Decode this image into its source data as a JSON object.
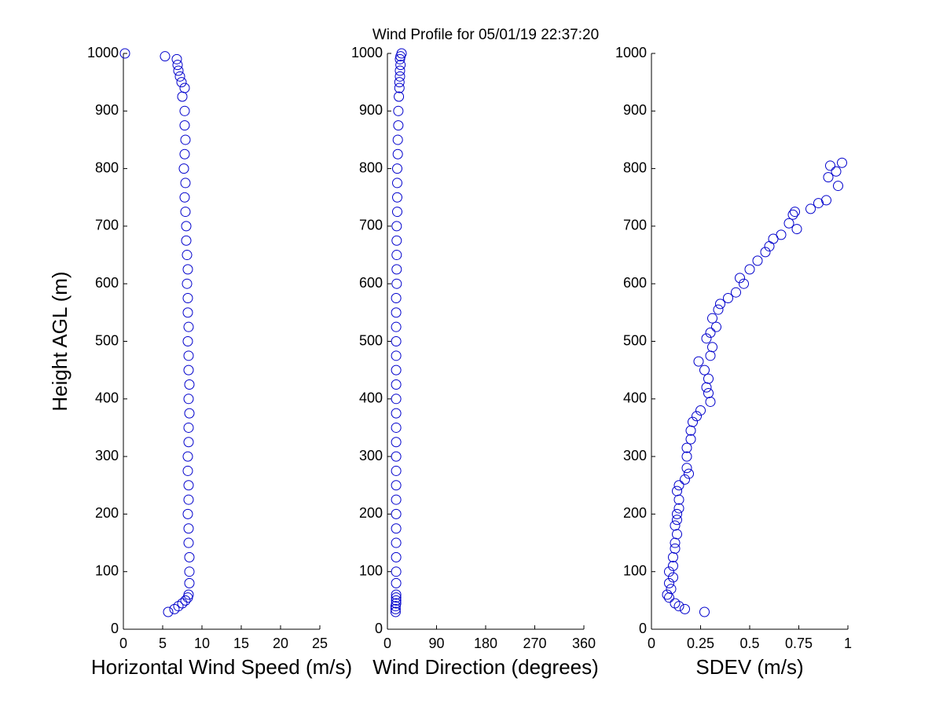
{
  "chart_data": [
    {
      "type": "scatter",
      "ylabel": "Height AGL (m)",
      "xlabel": "Horizontal Wind Speed (m/s)",
      "color": "#0000cc",
      "xlim": [
        0,
        25
      ],
      "xticks": [
        0,
        5,
        10,
        15,
        20,
        25
      ],
      "ylim": [
        0,
        1000
      ],
      "yticks": [
        0,
        100,
        200,
        300,
        400,
        500,
        600,
        700,
        800,
        900,
        1000
      ],
      "x": [
        5.7,
        6.5,
        7.0,
        7.5,
        7.9,
        8.2,
        8.3,
        8.4,
        8.4,
        8.4,
        8.3,
        8.3,
        8.2,
        8.3,
        8.3,
        8.2,
        8.2,
        8.3,
        8.3,
        8.4,
        8.3,
        8.4,
        8.3,
        8.3,
        8.2,
        8.3,
        8.2,
        8.2,
        8.1,
        8.2,
        8.1,
        8.0,
        8.0,
        7.9,
        7.8,
        7.9,
        7.7,
        7.8,
        7.9,
        7.8,
        7.8,
        7.5,
        7.8,
        7.4,
        7.2,
        7.0,
        6.9,
        6.8,
        5.3,
        0.2
      ],
      "y": [
        30,
        35,
        40,
        45,
        50,
        55,
        60,
        80,
        100,
        125,
        150,
        175,
        200,
        225,
        250,
        275,
        300,
        325,
        350,
        375,
        400,
        425,
        450,
        475,
        500,
        525,
        550,
        575,
        600,
        625,
        650,
        675,
        700,
        725,
        750,
        775,
        800,
        825,
        850,
        875,
        900,
        925,
        940,
        950,
        960,
        970,
        980,
        990,
        995,
        1000
      ]
    },
    {
      "type": "scatter",
      "title": "Wind Profile for  05/01/19 22:37:20",
      "xlabel": "Wind Direction (degrees)",
      "color": "#0000cc",
      "xlim": [
        0,
        360
      ],
      "xticks": [
        0,
        90,
        180,
        270,
        360
      ],
      "ylim": [
        0,
        1000
      ],
      "yticks": [
        0,
        100,
        200,
        300,
        400,
        500,
        600,
        700,
        800,
        900,
        1000
      ],
      "x": [
        15,
        15,
        15,
        16,
        16,
        16,
        16,
        16,
        16,
        16,
        16,
        16,
        16,
        16,
        16,
        16,
        16,
        16,
        16,
        16,
        16,
        16,
        16,
        16,
        16,
        16,
        16,
        16,
        17,
        17,
        17,
        17,
        17,
        18,
        18,
        18,
        18,
        19,
        19,
        20,
        20,
        21,
        22,
        22,
        23,
        23,
        24,
        23,
        24,
        26
      ],
      "y": [
        30,
        35,
        40,
        45,
        50,
        55,
        60,
        80,
        100,
        125,
        150,
        175,
        200,
        225,
        250,
        275,
        300,
        325,
        350,
        375,
        400,
        425,
        450,
        475,
        500,
        525,
        550,
        575,
        600,
        625,
        650,
        675,
        700,
        725,
        750,
        775,
        800,
        825,
        850,
        875,
        900,
        925,
        940,
        950,
        960,
        970,
        980,
        990,
        995,
        1000
      ]
    },
    {
      "type": "scatter",
      "xlabel": "SDEV  (m/s)",
      "color": "#0000cc",
      "xlim": [
        0,
        1
      ],
      "xticks": [
        0,
        0.25,
        0.5,
        0.75,
        1
      ],
      "ylim": [
        0,
        1000
      ],
      "yticks": [
        0,
        100,
        200,
        300,
        400,
        500,
        600,
        700,
        800,
        900,
        1000
      ],
      "x": [
        0.27,
        0.17,
        0.14,
        0.12,
        0.09,
        0.08,
        0.1,
        0.09,
        0.11,
        0.09,
        0.11,
        0.11,
        0.12,
        0.12,
        0.13,
        0.12,
        0.13,
        0.13,
        0.14,
        0.14,
        0.13,
        0.14,
        0.17,
        0.19,
        0.18,
        0.18,
        0.18,
        0.2,
        0.2,
        0.21,
        0.23,
        0.25,
        0.3,
        0.29,
        0.28,
        0.29,
        0.27,
        0.24,
        0.3,
        0.31,
        0.28,
        0.3,
        0.33,
        0.31,
        0.34,
        0.35,
        0.39,
        0.43,
        0.47,
        0.45,
        0.5,
        0.54,
        0.58,
        0.6,
        0.62,
        0.66,
        0.74,
        0.7,
        0.72,
        0.73,
        0.81,
        0.85,
        0.89,
        0.95,
        0.9,
        0.94,
        0.91,
        0.97
      ],
      "y": [
        30,
        35,
        40,
        45,
        55,
        60,
        70,
        80,
        90,
        100,
        110,
        125,
        140,
        150,
        165,
        180,
        190,
        200,
        210,
        225,
        240,
        250,
        260,
        270,
        280,
        300,
        315,
        330,
        345,
        360,
        370,
        380,
        395,
        410,
        420,
        435,
        450,
        465,
        475,
        490,
        505,
        515,
        525,
        540,
        555,
        565,
        575,
        585,
        600,
        610,
        625,
        640,
        655,
        665,
        678,
        685,
        695,
        705,
        720,
        725,
        730,
        740,
        745,
        770,
        785,
        795,
        805,
        810
      ]
    }
  ]
}
